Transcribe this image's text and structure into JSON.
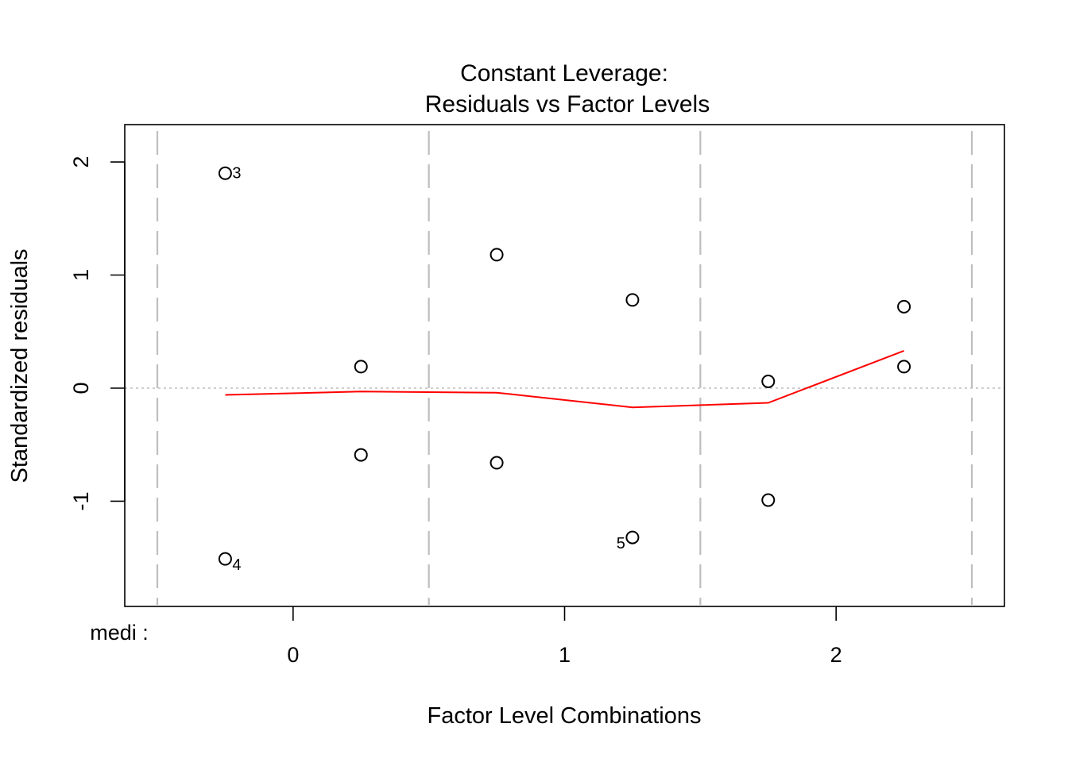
{
  "chart_data": {
    "type": "scatter",
    "title": "Constant Leverage:",
    "subtitle": "Residuals vs Factor Levels",
    "xlabel": "Factor Level Combinations",
    "ylabel": "Standardized residuals",
    "factor_label": "medi :",
    "xlim": [
      -0.62,
      2.62
    ],
    "ylim": [
      -1.93,
      2.33
    ],
    "x_ticks": [
      {
        "value": 0,
        "label": "0"
      },
      {
        "value": 1,
        "label": "1"
      },
      {
        "value": 2,
        "label": "2"
      }
    ],
    "y_ticks": [
      {
        "value": -1,
        "label": "-1"
      },
      {
        "value": 0,
        "label": "0"
      },
      {
        "value": 1,
        "label": "1"
      },
      {
        "value": 2,
        "label": "2"
      }
    ],
    "level_separators": [
      -0.5,
      0.5,
      1.5,
      2.5
    ],
    "reference_line_y": 0,
    "points": [
      {
        "x": -0.25,
        "y": 1.9,
        "label": "3",
        "label_side": "right-up"
      },
      {
        "x": -0.25,
        "y": -1.51,
        "label": "4",
        "label_side": "right-down"
      },
      {
        "x": 0.25,
        "y": 0.19
      },
      {
        "x": 0.25,
        "y": -0.59
      },
      {
        "x": 0.75,
        "y": 1.18
      },
      {
        "x": 0.75,
        "y": -0.66
      },
      {
        "x": 1.25,
        "y": 0.78
      },
      {
        "x": 1.25,
        "y": -1.32,
        "label": "5",
        "label_side": "left-down"
      },
      {
        "x": 1.75,
        "y": 0.06
      },
      {
        "x": 1.75,
        "y": -0.99
      },
      {
        "x": 2.25,
        "y": 0.72
      },
      {
        "x": 2.25,
        "y": 0.19
      }
    ],
    "smooth_line": {
      "color": "#ff0000",
      "x": [
        -0.25,
        0.25,
        0.75,
        1.25,
        1.75,
        2.25
      ],
      "y": [
        -0.06,
        -0.03,
        -0.04,
        -0.17,
        -0.13,
        0.33
      ]
    },
    "colors": {
      "points": "#000000",
      "separator": "#bebebe",
      "reference": "#bebebe",
      "smooth": "#ff0000"
    },
    "grid": false
  }
}
